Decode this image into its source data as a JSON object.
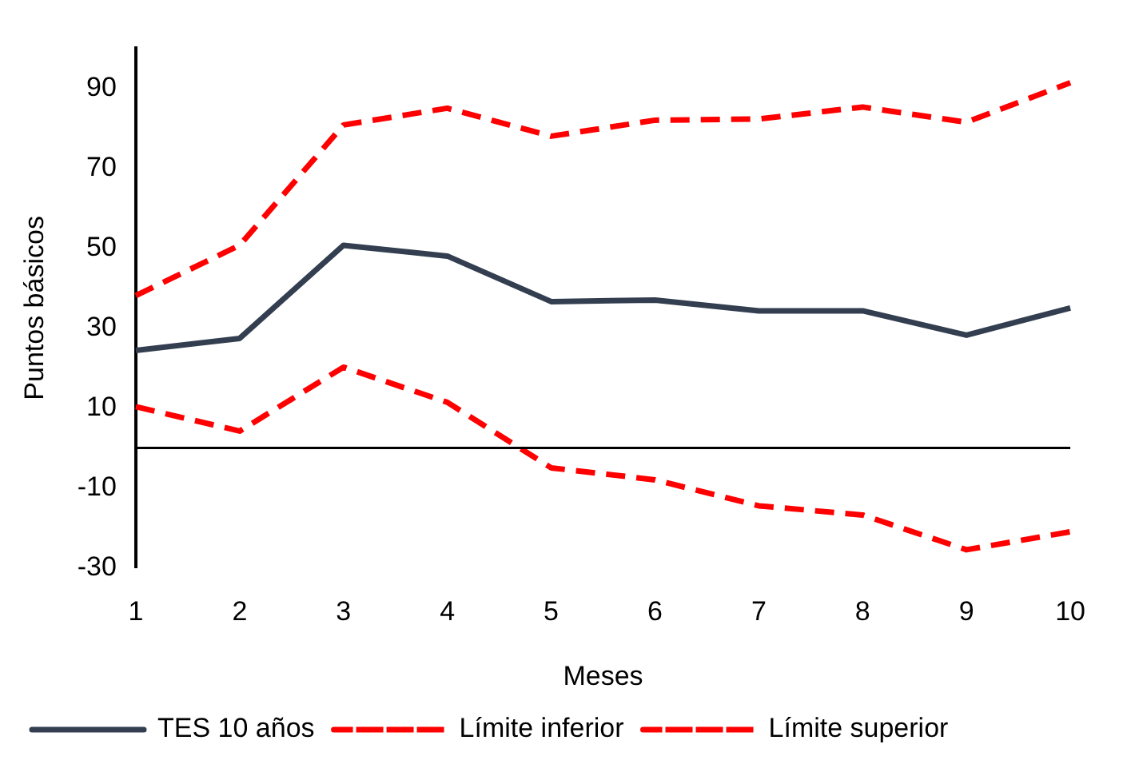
{
  "chart_data": {
    "type": "line",
    "xlabel": "Meses",
    "ylabel": "Puntos básicos",
    "categories": [
      "1",
      "2",
      "3",
      "4",
      "5",
      "6",
      "7",
      "8",
      "9",
      "10"
    ],
    "series": [
      {
        "name": "TES 10 años",
        "color": "#333f50",
        "line_style": "solid",
        "values": [
          24.4,
          27.4,
          50.7,
          48,
          36.6,
          37,
          34.3,
          34.3,
          28.2,
          35
        ]
      },
      {
        "name": "Límite inferior",
        "color": "#ff0000",
        "line_style": "dashed",
        "values": [
          10.3,
          4.2,
          20.2,
          11.4,
          -5,
          -8,
          -14.5,
          -16.8,
          -25.5,
          -21
        ]
      },
      {
        "name": "Límite superior",
        "color": "#ff0000",
        "line_style": "dashed",
        "values": [
          38.1,
          50.7,
          80.8,
          85,
          78,
          82,
          82.3,
          85.3,
          81.5,
          91.4
        ]
      }
    ],
    "ylim": [
      -30,
      100
    ],
    "yticks": [
      -30,
      -10,
      10,
      30,
      50,
      70,
      90
    ],
    "ref_lines": [
      {
        "axis": "y",
        "value": 0,
        "color": "#000000"
      }
    ],
    "grid": false,
    "legend": "bottom",
    "marker": "none"
  }
}
